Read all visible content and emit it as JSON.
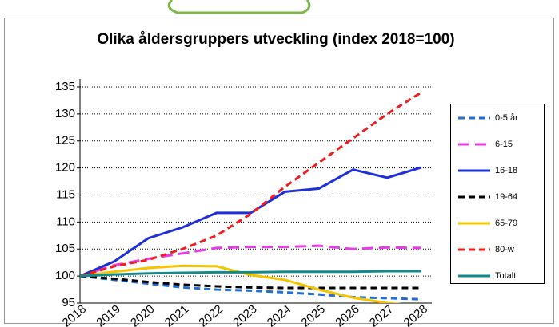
{
  "chart_data": {
    "type": "line",
    "title": "Olika åldersgruppers utveckling (index 2018=100)",
    "categories": [
      "2018",
      "2019",
      "2020",
      "2021",
      "2022",
      "2023",
      "2024",
      "2025",
      "2026",
      "2027",
      "2028"
    ],
    "ylim": [
      95,
      135
    ],
    "yticks": [
      95,
      100,
      105,
      110,
      115,
      120,
      125,
      130,
      135
    ],
    "grid": true,
    "legend": "right",
    "series": [
      {
        "name": "0-5 år",
        "color": "#1f6fd6",
        "dash": "dashed",
        "values": [
          100,
          99.3,
          98.6,
          97.9,
          97.5,
          97.3,
          97.0,
          96.6,
          96.1,
          95.9,
          95.7
        ]
      },
      {
        "name": "6-15",
        "color": "#e83ae8",
        "dash": "longdash",
        "values": [
          100,
          102,
          103.2,
          104.2,
          105.2,
          105.4,
          105.4,
          105.6,
          105.0,
          105.3,
          105.2
        ]
      },
      {
        "name": "16-18",
        "color": "#1c2fd8",
        "dash": "solid",
        "values": [
          100,
          102.7,
          107,
          109,
          111.7,
          111.7,
          115.6,
          116.2,
          119.7,
          118.2,
          120.1
        ]
      },
      {
        "name": "19-64",
        "color": "#000000",
        "dash": "dashed",
        "values": [
          100,
          99.5,
          98.9,
          98.4,
          98.1,
          97.9,
          97.8,
          97.8,
          97.8,
          97.8,
          97.8
        ]
      },
      {
        "name": "65-79",
        "color": "#f5c400",
        "dash": "solid",
        "values": [
          100,
          100.8,
          101.5,
          101.9,
          101.8,
          100.2,
          99.3,
          97.5,
          96.0,
          95.0,
          94.5
        ]
      },
      {
        "name": "80-w",
        "color": "#ee1c1c",
        "dash": "dashed",
        "values": [
          100,
          101.8,
          103,
          105,
          107.5,
          111.5,
          116.5,
          121,
          125.5,
          130,
          134
        ]
      },
      {
        "name": "Totalt",
        "color": "#138a8a",
        "dash": "solid",
        "values": [
          100,
          100.3,
          100.5,
          100.6,
          100.7,
          100.7,
          100.8,
          100.8,
          100.8,
          100.9,
          100.9
        ]
      }
    ]
  }
}
